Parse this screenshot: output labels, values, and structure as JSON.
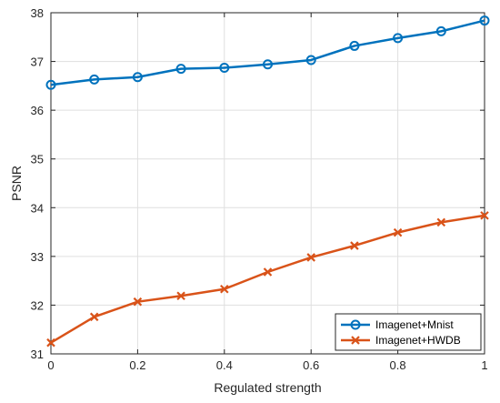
{
  "chart_data": {
    "type": "line",
    "title": "",
    "xlabel": "Regulated strength",
    "ylabel": "PSNR",
    "xlim": [
      0,
      1
    ],
    "ylim": [
      31,
      38
    ],
    "x_ticks": [
      0,
      0.2,
      0.4,
      0.6,
      0.8,
      1
    ],
    "y_ticks": [
      31,
      32,
      33,
      34,
      35,
      36,
      37,
      38
    ],
    "x_tick_labels": [
      "0",
      "0.2",
      "0.4",
      "0.6",
      "0.8",
      "1"
    ],
    "y_tick_labels": [
      "31",
      "32",
      "33",
      "34",
      "35",
      "36",
      "37",
      "38"
    ],
    "grid": true,
    "legend_position": "bottom-right",
    "x": [
      0,
      0.1,
      0.2,
      0.3,
      0.4,
      0.5,
      0.6,
      0.7,
      0.8,
      0.9,
      1.0
    ],
    "series": [
      {
        "name": "Imagenet+Mnist",
        "color": "#0072BD",
        "marker": "circle",
        "values": [
          36.52,
          36.63,
          36.68,
          36.85,
          36.87,
          36.94,
          37.03,
          37.32,
          37.48,
          37.62,
          37.84
        ]
      },
      {
        "name": "Imagenet+HWDB",
        "color": "#D95319",
        "marker": "x",
        "values": [
          31.23,
          31.76,
          32.07,
          32.19,
          32.33,
          32.68,
          32.98,
          33.22,
          33.49,
          33.7,
          33.84
        ]
      }
    ]
  }
}
